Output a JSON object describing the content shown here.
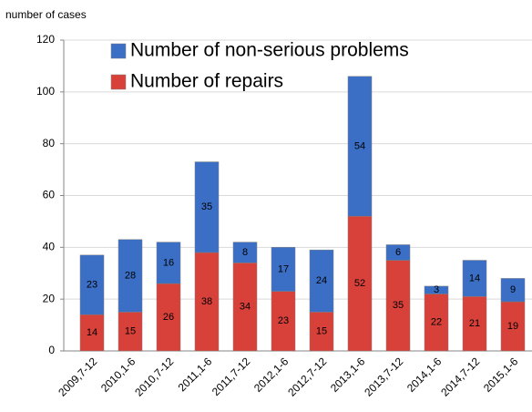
{
  "chart_data": {
    "type": "stacked_bar",
    "y_axis_label": "number of cases",
    "categories": [
      "2009,7-12",
      "2010,1-6",
      "2010,7-12",
      "2011,1-6",
      "2011,7-12",
      "2012,1-6",
      "2012,7-12",
      "2013,1-6",
      "2013,7-12",
      "2014,1-6",
      "2014,7-12",
      "2015,1-6"
    ],
    "series": [
      {
        "name": "Number of non-serious problems",
        "color": "#3b6fc6",
        "values": [
          23,
          28,
          16,
          35,
          8,
          17,
          24,
          54,
          6,
          3,
          14,
          9
        ]
      },
      {
        "name": "Number of repairs",
        "color": "#d8403a",
        "values": [
          14,
          15,
          26,
          38,
          34,
          23,
          15,
          52,
          35,
          22,
          21,
          19
        ]
      }
    ],
    "ylim": [
      0,
      120
    ],
    "yticks": [
      0,
      20,
      40,
      60,
      80,
      100,
      120
    ],
    "grid": true
  }
}
